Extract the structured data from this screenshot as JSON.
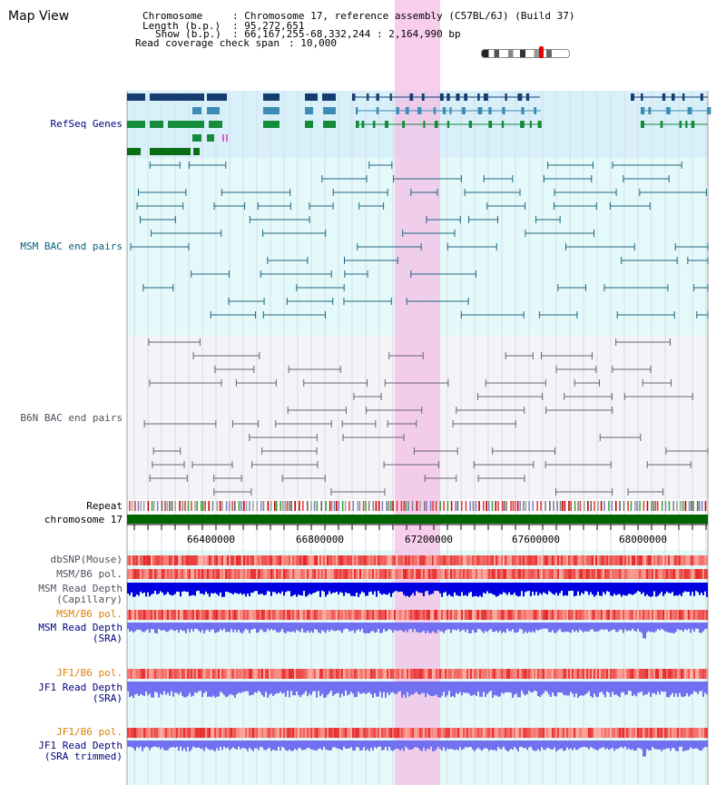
{
  "page_title": "Map View",
  "info": {
    "chromosome_key": "Chromosome",
    "chromosome_value": "Chromosome 17, reference assembly (C57BL/6J) (Build 37)",
    "length_key": "Length (b.p.)",
    "length_value": "95,272,651",
    "show_key": "Show (b.p.)",
    "show_value": "66,167,255-68,332,244 : 2,164,990 bp",
    "coverage_key": "Read coverage check span",
    "coverage_value": "10,000"
  },
  "tracks": {
    "refseq": "RefSeq Genes",
    "msm_bac": "MSM BAC end pairs",
    "b6n_bac": "B6N BAC end pairs",
    "repeat": "Repeat",
    "chromosome": "chromosome 17",
    "dbsnp": "dbSNP(Mouse)",
    "msm_b6_pol_1": "MSM/B6 pol.",
    "msm_depth_cap_1": "MSM Read Depth",
    "msm_depth_cap_2": "(Capillary)",
    "msm_b6_pol_2": "MSM/B6 pol.",
    "msm_depth_sra_1": "MSM Read Depth",
    "msm_depth_sra_2": "(SRA)",
    "jf1_b6_pol_1": "JF1/B6 pol.",
    "jf1_depth_sra_1": "JF1 Read Depth",
    "jf1_depth_sra_2": "(SRA)",
    "jf1_b6_pol_2": "JF1/B6 pol.",
    "jf1_depth_trim_1": "JF1 Read Depth",
    "jf1_depth_trim_2": "(SRA trimmed)"
  },
  "axis": {
    "tick_labels": [
      "66400000",
      "66800000",
      "67200000",
      "67600000",
      "68000000"
    ]
  },
  "colors": {
    "refseq_bg": "#d8f0fa",
    "msm_bg": "#e4fafa",
    "b6n_bg": "#f4f4f8",
    "lower_bg": "#e4fafa",
    "highlight": "#f8d0ec",
    "chromosome_bar": "#006400",
    "label_blue": "#000080",
    "label_teal": "#006080",
    "label_orange": "#e08000",
    "label_gray": "#505060",
    "depth_dark": "#0000e0",
    "depth_light": "#7070f0"
  }
}
